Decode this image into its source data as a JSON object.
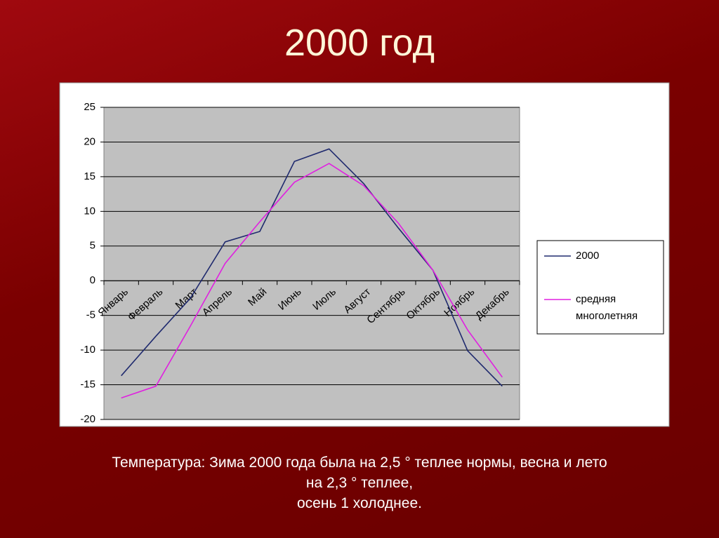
{
  "title": "2000 год",
  "chart_data": {
    "type": "line",
    "categories": [
      "Январь",
      "Февраль",
      "Март",
      "Апрель",
      "Май",
      "Июнь",
      "Июль",
      "Август",
      "Сентябрь",
      "Октябрь",
      "Ноябрь",
      "Декабрь"
    ],
    "series": [
      {
        "name": "2000",
        "color": "#1f2a6e",
        "values": [
          -13.7,
          -8,
          -2.5,
          5.6,
          7.1,
          17.2,
          19,
          14,
          7.6,
          1.5,
          -10.1,
          -15.2
        ]
      },
      {
        "name": "средняя многолетняя",
        "color": "#e020e0",
        "values": [
          -16.9,
          -15.2,
          -6.5,
          2.5,
          8.5,
          14.2,
          16.9,
          13.7,
          8.3,
          1.5,
          -7.1,
          -13.9
        ]
      }
    ],
    "ylim": [
      -20,
      25
    ],
    "yticks": [
      -20,
      -15,
      -10,
      -5,
      0,
      5,
      10,
      15,
      20,
      25
    ],
    "grid": true,
    "legend": "right"
  },
  "caption": [
    "Температура: Зима 2000 года была на 2,5 ° теплее нормы, весна и лето",
    "на 2,3 ° теплее,",
    "осень 1 холоднее."
  ]
}
